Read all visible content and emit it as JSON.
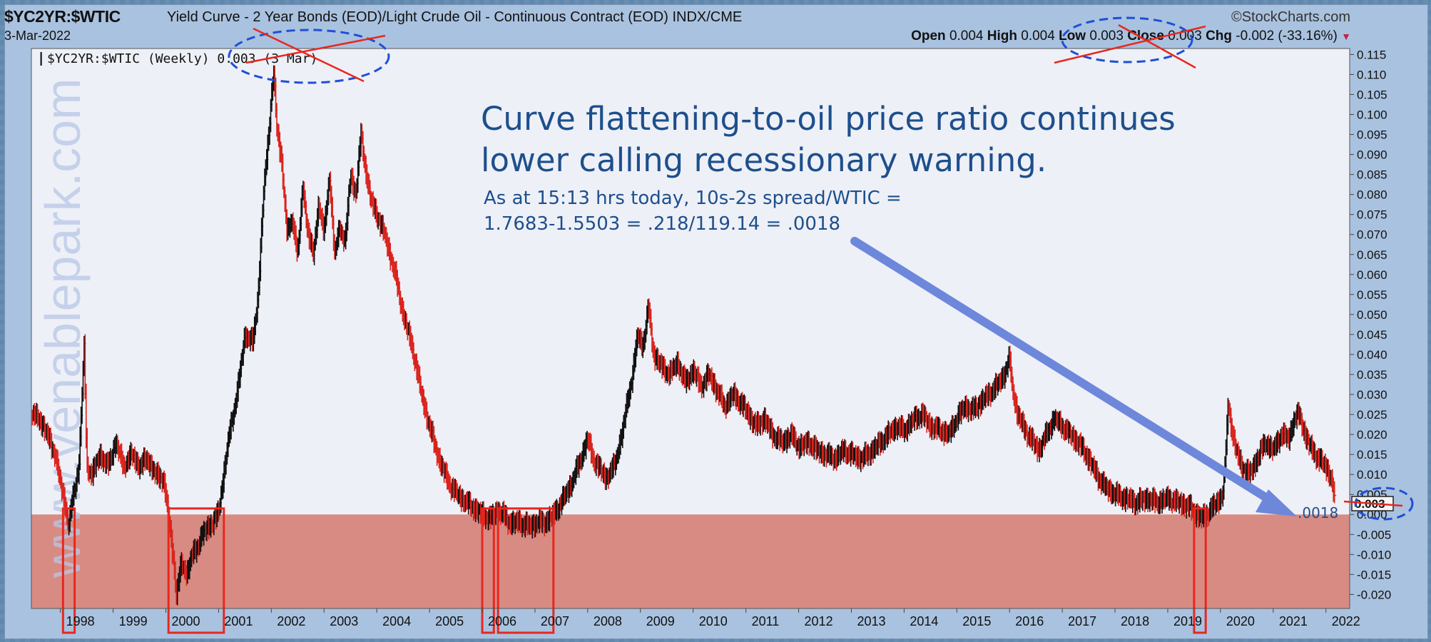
{
  "header": {
    "symbol": "$YC2YR:$WTIC",
    "description": "Yield Curve - 2 Year Bonds (EOD)/Light Crude Oil - Continuous Contract (EOD) INDX/CME",
    "date": "3-Mar-2022",
    "brand": "©StockCharts.com",
    "ohlc": {
      "open_label": "Open",
      "open": "0.004",
      "high_label": "High",
      "high": "0.004",
      "low_label": "Low",
      "low": "0.003",
      "close_label": "Close",
      "close": "0.003",
      "chg_label": "Chg",
      "chg": "-0.002 (-33.16%)"
    }
  },
  "legend": {
    "icon": "candlestick-icon",
    "text": "$YC2YR:$WTIC (Weekly) 0.003 (3 Mar)"
  },
  "watermark": "www.venablepark.com",
  "annotation": {
    "headline_1": "Curve flattening-to-oil price ratio continues",
    "headline_2": "lower calling recessionary warning.",
    "note_1": "As at 15:13 hrs today, 10s-2s spread/WTIC =",
    "note_2": "1.7683-1.5503 = .218/119.14 = .0018",
    "arrow_label": ".0018",
    "last_value_label": "0.003"
  },
  "colors": {
    "up_bar": "#111111",
    "down_bar": "#d9231d",
    "recession_zone": "#d88b83",
    "plot_bg": "#eef0f7",
    "frame_bg": "#a9c2df",
    "arrow": "#6d87db",
    "circle": "#1f4fd6",
    "cross": "#e8271e",
    "annotation_text": "#1d4f8c"
  },
  "chart_data": {
    "type": "line",
    "title": "$YC2YR:$WTIC (Weekly)",
    "x_ticks": [
      "1998",
      "1999",
      "2000",
      "2001",
      "2002",
      "2003",
      "2004",
      "2005",
      "2006",
      "2007",
      "2008",
      "2009",
      "2010",
      "2011",
      "2012",
      "2013",
      "2014",
      "2015",
      "2016",
      "2017",
      "2018",
      "2019",
      "2020",
      "2021",
      "2022"
    ],
    "y_ticks": [
      "0.115",
      "0.110",
      "0.105",
      "0.100",
      "0.095",
      "0.090",
      "0.085",
      "0.080",
      "0.075",
      "0.070",
      "0.065",
      "0.060",
      "0.055",
      "0.050",
      "0.045",
      "0.040",
      "0.035",
      "0.030",
      "0.025",
      "0.020",
      "0.015",
      "0.010",
      "0.005",
      "0.000",
      "-0.005",
      "-0.010",
      "-0.015",
      "-0.020"
    ],
    "ylim": [
      -0.0235,
      0.1165
    ],
    "xlim": [
      1997.45,
      2022.45
    ],
    "y_axis_position": "right",
    "grid": false,
    "series": [
      {
        "points": [
          [
            1997.45,
            0.025
          ],
          [
            1997.6,
            0.024
          ],
          [
            1997.75,
            0.02
          ],
          [
            1997.9,
            0.015
          ],
          [
            1998.0,
            0.008
          ],
          [
            1998.1,
            0.002
          ],
          [
            1998.15,
            -0.003
          ],
          [
            1998.25,
            0.005
          ],
          [
            1998.35,
            0.012
          ],
          [
            1998.45,
            0.042
          ],
          [
            1998.5,
            0.012
          ],
          [
            1998.6,
            0.01
          ],
          [
            1998.75,
            0.015
          ],
          [
            1998.9,
            0.012
          ],
          [
            1999.05,
            0.018
          ],
          [
            1999.2,
            0.012
          ],
          [
            1999.35,
            0.015
          ],
          [
            1999.5,
            0.012
          ],
          [
            1999.65,
            0.014
          ],
          [
            1999.8,
            0.01
          ],
          [
            1999.95,
            0.009
          ],
          [
            2000.05,
            0.0
          ],
          [
            2000.15,
            -0.012
          ],
          [
            2000.2,
            -0.02
          ],
          [
            2000.3,
            -0.012
          ],
          [
            2000.4,
            -0.015
          ],
          [
            2000.5,
            -0.01
          ],
          [
            2000.6,
            -0.008
          ],
          [
            2000.7,
            -0.005
          ],
          [
            2000.8,
            -0.003
          ],
          [
            2000.9,
            -0.002
          ],
          [
            2000.95,
            -0.001
          ],
          [
            2001.0,
            0.001
          ],
          [
            2001.1,
            0.01
          ],
          [
            2001.2,
            0.02
          ],
          [
            2001.35,
            0.03
          ],
          [
            2001.5,
            0.045
          ],
          [
            2001.65,
            0.043
          ],
          [
            2001.75,
            0.055
          ],
          [
            2001.85,
            0.08
          ],
          [
            2001.95,
            0.095
          ],
          [
            2002.0,
            0.105
          ],
          [
            2002.05,
            0.11
          ],
          [
            2002.1,
            0.097
          ],
          [
            2002.2,
            0.088
          ],
          [
            2002.3,
            0.07
          ],
          [
            2002.4,
            0.074
          ],
          [
            2002.5,
            0.065
          ],
          [
            2002.6,
            0.082
          ],
          [
            2002.7,
            0.07
          ],
          [
            2002.8,
            0.065
          ],
          [
            2002.9,
            0.078
          ],
          [
            2003.0,
            0.07
          ],
          [
            2003.1,
            0.085
          ],
          [
            2003.2,
            0.065
          ],
          [
            2003.3,
            0.072
          ],
          [
            2003.4,
            0.068
          ],
          [
            2003.5,
            0.085
          ],
          [
            2003.6,
            0.08
          ],
          [
            2003.7,
            0.095
          ],
          [
            2003.8,
            0.085
          ],
          [
            2003.9,
            0.078
          ],
          [
            2004.0,
            0.075
          ],
          [
            2004.15,
            0.07
          ],
          [
            2004.25,
            0.065
          ],
          [
            2004.35,
            0.06
          ],
          [
            2004.5,
            0.05
          ],
          [
            2004.65,
            0.043
          ],
          [
            2004.75,
            0.037
          ],
          [
            2004.85,
            0.03
          ],
          [
            2005.0,
            0.022
          ],
          [
            2005.2,
            0.013
          ],
          [
            2005.4,
            0.007
          ],
          [
            2005.6,
            0.004
          ],
          [
            2005.8,
            0.002
          ],
          [
            2006.0,
            0.0
          ],
          [
            2006.15,
            -0.001
          ],
          [
            2006.3,
            0.001
          ],
          [
            2006.4,
            0.0
          ],
          [
            2006.5,
            -0.002
          ],
          [
            2006.7,
            -0.002
          ],
          [
            2006.9,
            -0.003
          ],
          [
            2007.05,
            -0.002
          ],
          [
            2007.2,
            -0.002
          ],
          [
            2007.35,
            0.0
          ],
          [
            2007.5,
            0.003
          ],
          [
            2007.7,
            0.008
          ],
          [
            2007.9,
            0.015
          ],
          [
            2008.0,
            0.019
          ],
          [
            2008.1,
            0.014
          ],
          [
            2008.2,
            0.012
          ],
          [
            2008.35,
            0.009
          ],
          [
            2008.5,
            0.012
          ],
          [
            2008.65,
            0.02
          ],
          [
            2008.75,
            0.028
          ],
          [
            2008.85,
            0.035
          ],
          [
            2008.95,
            0.045
          ],
          [
            2009.05,
            0.042
          ],
          [
            2009.15,
            0.052
          ],
          [
            2009.25,
            0.04
          ],
          [
            2009.4,
            0.037
          ],
          [
            2009.55,
            0.035
          ],
          [
            2009.7,
            0.038
          ],
          [
            2009.85,
            0.033
          ],
          [
            2010.0,
            0.036
          ],
          [
            2010.15,
            0.032
          ],
          [
            2010.3,
            0.035
          ],
          [
            2010.45,
            0.031
          ],
          [
            2010.6,
            0.027
          ],
          [
            2010.75,
            0.03
          ],
          [
            2010.9,
            0.028
          ],
          [
            2011.05,
            0.025
          ],
          [
            2011.2,
            0.022
          ],
          [
            2011.35,
            0.024
          ],
          [
            2011.5,
            0.02
          ],
          [
            2011.7,
            0.018
          ],
          [
            2011.85,
            0.02
          ],
          [
            2012.0,
            0.017
          ],
          [
            2012.2,
            0.018
          ],
          [
            2012.35,
            0.016
          ],
          [
            2012.5,
            0.015
          ],
          [
            2012.7,
            0.014
          ],
          [
            2012.85,
            0.016
          ],
          [
            2013.0,
            0.015
          ],
          [
            2013.2,
            0.014
          ],
          [
            2013.4,
            0.016
          ],
          [
            2013.55,
            0.018
          ],
          [
            2013.7,
            0.02
          ],
          [
            2013.85,
            0.022
          ],
          [
            2014.0,
            0.021
          ],
          [
            2014.2,
            0.024
          ],
          [
            2014.35,
            0.025
          ],
          [
            2014.5,
            0.022
          ],
          [
            2014.7,
            0.021
          ],
          [
            2014.85,
            0.02
          ],
          [
            2015.0,
            0.024
          ],
          [
            2015.15,
            0.027
          ],
          [
            2015.3,
            0.026
          ],
          [
            2015.45,
            0.028
          ],
          [
            2015.6,
            0.03
          ],
          [
            2015.75,
            0.032
          ],
          [
            2015.9,
            0.035
          ],
          [
            2016.0,
            0.039
          ],
          [
            2016.05,
            0.032
          ],
          [
            2016.15,
            0.025
          ],
          [
            2016.3,
            0.021
          ],
          [
            2016.45,
            0.018
          ],
          [
            2016.55,
            0.016
          ],
          [
            2016.7,
            0.02
          ],
          [
            2016.85,
            0.024
          ],
          [
            2017.0,
            0.022
          ],
          [
            2017.15,
            0.02
          ],
          [
            2017.3,
            0.018
          ],
          [
            2017.5,
            0.014
          ],
          [
            2017.65,
            0.01
          ],
          [
            2017.8,
            0.007
          ],
          [
            2018.0,
            0.005
          ],
          [
            2018.2,
            0.004
          ],
          [
            2018.4,
            0.003
          ],
          [
            2018.6,
            0.004
          ],
          [
            2018.8,
            0.003
          ],
          [
            2019.0,
            0.004
          ],
          [
            2019.2,
            0.003
          ],
          [
            2019.4,
            0.002
          ],
          [
            2019.55,
            0.0
          ],
          [
            2019.65,
            -0.001
          ],
          [
            2019.8,
            0.001
          ],
          [
            2020.0,
            0.004
          ],
          [
            2020.05,
            0.006
          ],
          [
            2020.1,
            0.015
          ],
          [
            2020.15,
            0.029
          ],
          [
            2020.2,
            0.022
          ],
          [
            2020.3,
            0.016
          ],
          [
            2020.4,
            0.012
          ],
          [
            2020.55,
            0.01
          ],
          [
            2020.7,
            0.014
          ],
          [
            2020.85,
            0.018
          ],
          [
            2021.0,
            0.016
          ],
          [
            2021.15,
            0.02
          ],
          [
            2021.3,
            0.019
          ],
          [
            2021.4,
            0.024
          ],
          [
            2021.5,
            0.025
          ],
          [
            2021.6,
            0.02
          ],
          [
            2021.7,
            0.017
          ],
          [
            2021.85,
            0.014
          ],
          [
            2022.0,
            0.012
          ],
          [
            2022.1,
            0.009
          ],
          [
            2022.17,
            0.003
          ]
        ]
      }
    ],
    "annotations": [
      "Curve flattening-to-oil price ratio continues lower calling recessionary warning.",
      "As at 15:13 hrs today, 10s-2s spread/WTIC = 1.7683-1.5503 = .218/119.14 = .0018",
      ".0018"
    ],
    "highlight_boxes_years": [
      [
        1998.05,
        1998.27
      ],
      [
        2000.05,
        2001.1
      ],
      [
        2006.0,
        2006.22
      ],
      [
        2006.3,
        2007.35
      ],
      [
        2019.5,
        2019.72
      ]
    ]
  }
}
